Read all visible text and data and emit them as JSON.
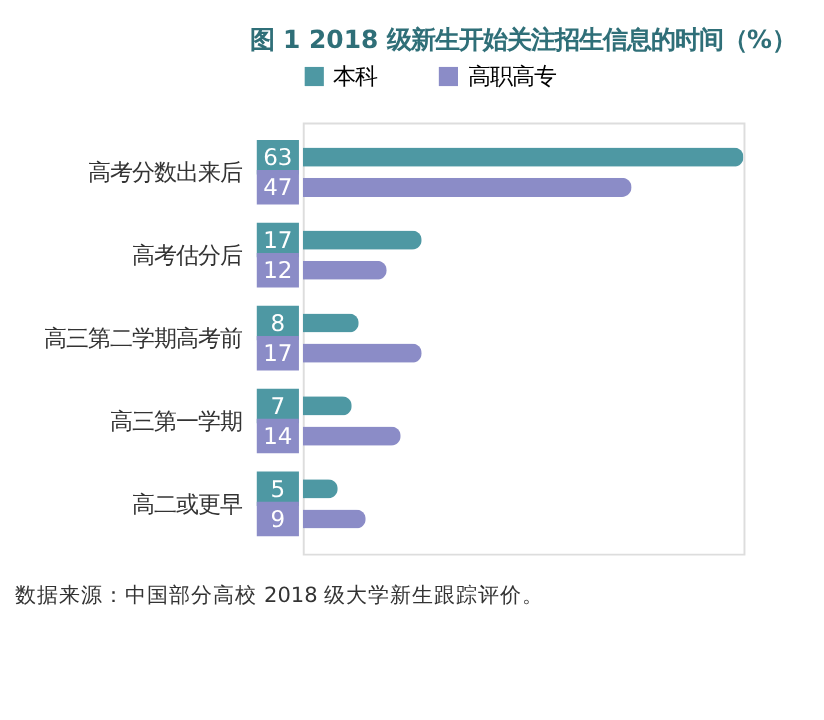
{
  "chart_data": {
    "type": "bar",
    "orientation": "horizontal",
    "title": "图 1  2018 级新生开始关注招生信息的时间（%）",
    "categories": [
      "高考分数出来后",
      "高考估分后",
      "高三第二学期高考前",
      "高三第一学期",
      "高二或更早"
    ],
    "series": [
      {
        "name": "本科",
        "color": "#4e98a3",
        "values": [
          63,
          17,
          8,
          7,
          5
        ]
      },
      {
        "name": "高职高专",
        "color": "#8b8cc7",
        "values": [
          47,
          12,
          17,
          14,
          9
        ]
      }
    ],
    "data_labels": true,
    "legend": "top",
    "grid": false,
    "annotations": [
      "数据来源：中国部分高校 2018 级大学新生跟踪评价。"
    ]
  }
}
